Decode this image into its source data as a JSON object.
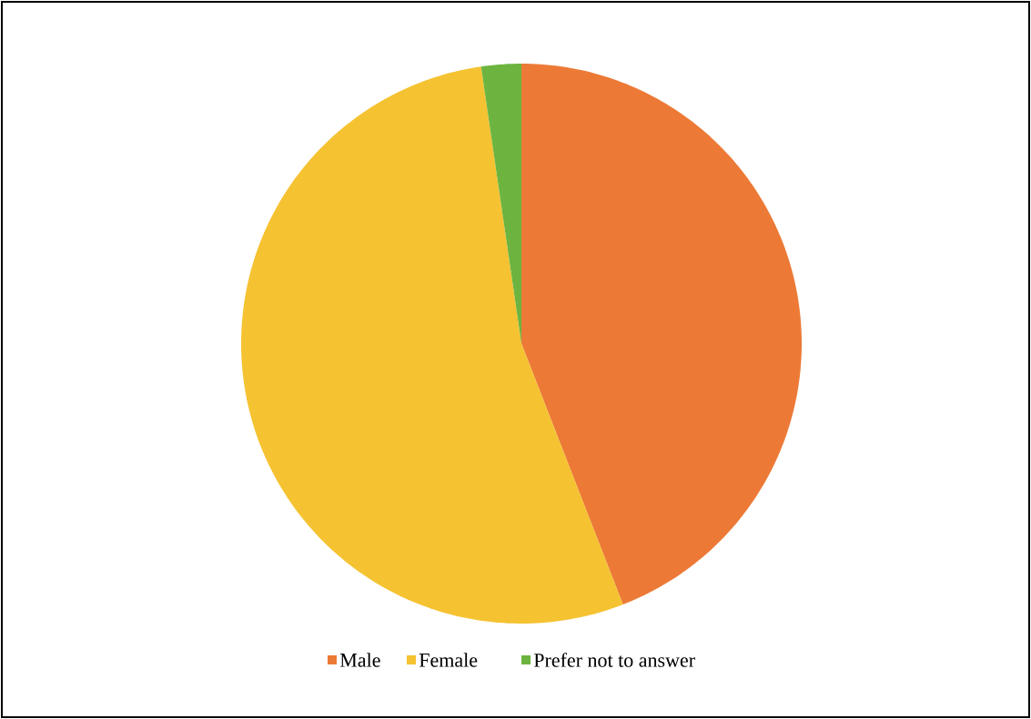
{
  "chart_data": {
    "type": "pie",
    "categories": [
      "Male",
      "Female",
      "Prefer not to answer"
    ],
    "values": [
      44.1,
      53.6,
      2.3
    ],
    "colors": [
      "#ec7a36",
      "#f5c232",
      "#6cb43f"
    ],
    "legend": "bottom"
  }
}
